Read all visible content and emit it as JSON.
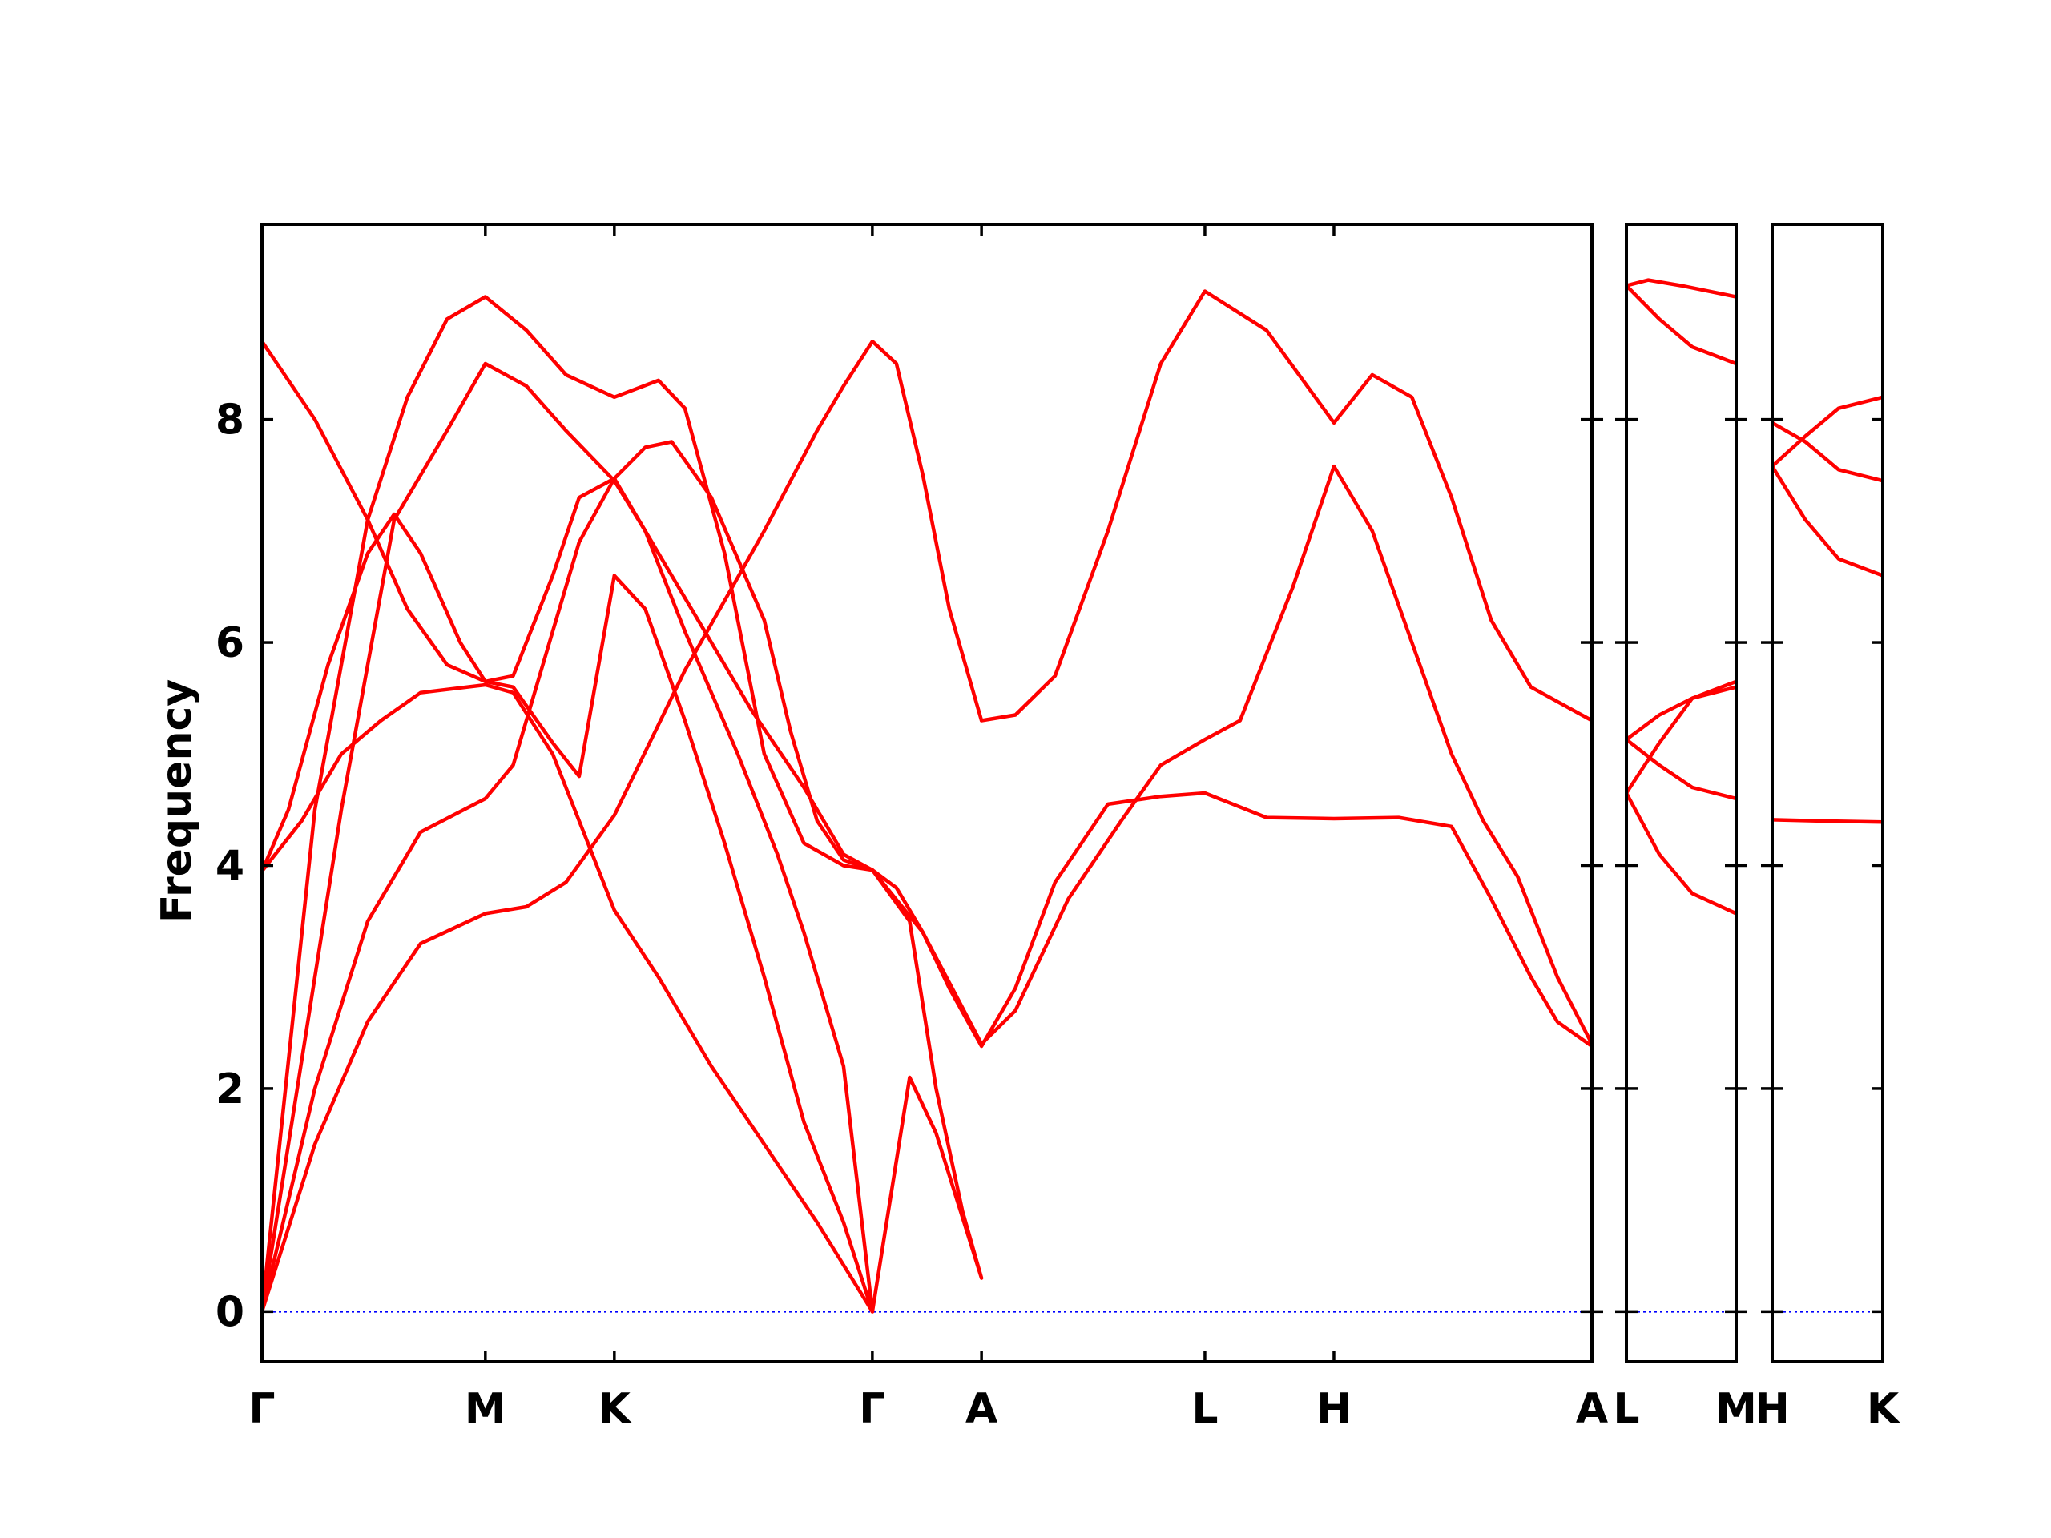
{
  "chart_data": {
    "type": "line",
    "title": "",
    "ylabel": "Frequency",
    "ylim": [
      -0.45,
      9.75
    ],
    "yticks": [
      0,
      2,
      4,
      6,
      8
    ],
    "line_color": "#ff0000",
    "zero_line_color": "#0000ff",
    "grid": false,
    "panels": [
      {
        "name": "main",
        "x_labels": [
          {
            "label": "Γ",
            "x": 0
          },
          {
            "label": "M",
            "x": 0.845
          },
          {
            "label": "K",
            "x": 1.333
          },
          {
            "label": "Γ",
            "x": 2.309
          },
          {
            "label": "A",
            "x": 2.722
          },
          {
            "label": "L",
            "x": 3.567
          },
          {
            "label": "H",
            "x": 4.055
          },
          {
            "label": "A",
            "x": 5.031
          }
        ],
        "series": [
          {
            "points": [
              [
                0,
                0
              ],
              [
                0.2,
                1.5
              ],
              [
                0.4,
                2.6
              ],
              [
                0.6,
                3.3
              ],
              [
                0.845,
                3.57
              ],
              [
                1.0,
                3.63
              ],
              [
                1.15,
                3.85
              ],
              [
                1.333,
                4.45
              ],
              [
                1.6,
                5.75
              ],
              [
                1.9,
                7.0
              ],
              [
                2.1,
                7.9
              ],
              [
                2.2,
                8.3
              ],
              [
                2.309,
                8.7
              ],
              [
                2.4,
                8.5
              ],
              [
                2.5,
                7.5
              ],
              [
                2.6,
                6.3
              ],
              [
                2.722,
                5.3
              ],
              [
                2.85,
                5.35
              ],
              [
                3.0,
                5.7
              ],
              [
                3.2,
                7.0
              ],
              [
                3.4,
                8.5
              ],
              [
                3.567,
                9.15
              ],
              [
                3.8,
                8.8
              ],
              [
                4.055,
                7.97
              ],
              [
                4.2,
                8.4
              ],
              [
                4.35,
                8.2
              ],
              [
                4.5,
                7.3
              ],
              [
                4.65,
                6.2
              ],
              [
                4.8,
                5.6
              ],
              [
                5.031,
                5.3
              ]
            ]
          },
          {
            "points": [
              [
                0,
                0
              ],
              [
                0.2,
                2.0
              ],
              [
                0.4,
                3.5
              ],
              [
                0.6,
                4.3
              ],
              [
                0.845,
                4.6
              ],
              [
                0.95,
                4.9
              ],
              [
                1.1,
                6.1
              ],
              [
                1.2,
                6.9
              ],
              [
                1.333,
                7.47
              ],
              [
                1.45,
                7.75
              ],
              [
                1.55,
                7.8
              ],
              [
                1.7,
                7.3
              ],
              [
                1.9,
                6.2
              ],
              [
                2.0,
                5.2
              ],
              [
                2.1,
                4.4
              ],
              [
                2.2,
                4.05
              ],
              [
                2.309,
                3.96
              ],
              [
                2.4,
                3.8
              ],
              [
                2.5,
                3.4
              ],
              [
                2.6,
                2.9
              ],
              [
                2.722,
                2.38
              ],
              [
                2.85,
                2.9
              ],
              [
                3.0,
                3.85
              ],
              [
                3.2,
                4.55
              ],
              [
                3.4,
                4.62
              ],
              [
                3.567,
                4.65
              ],
              [
                3.8,
                4.43
              ],
              [
                4.055,
                4.42
              ],
              [
                4.3,
                4.43
              ],
              [
                4.5,
                4.35
              ],
              [
                4.65,
                3.7
              ],
              [
                4.8,
                3.0
              ],
              [
                4.9,
                2.6
              ],
              [
                5.031,
                2.38
              ]
            ]
          },
          {
            "points": [
              [
                0,
                0
              ],
              [
                0.3,
                4.5
              ],
              [
                0.5,
                7.1
              ],
              [
                0.7,
                7.9
              ],
              [
                0.845,
                8.5
              ],
              [
                1.0,
                8.3
              ],
              [
                1.15,
                7.9
              ],
              [
                1.333,
                7.45
              ],
              [
                1.45,
                7.0
              ],
              [
                1.65,
                6.2
              ],
              [
                1.85,
                5.4
              ],
              [
                2.05,
                4.7
              ],
              [
                2.2,
                4.1
              ],
              [
                2.309,
                3.96
              ],
              [
                2.5,
                3.4
              ],
              [
                2.722,
                2.4
              ],
              [
                2.85,
                2.7
              ],
              [
                3.05,
                3.7
              ],
              [
                3.25,
                4.4
              ],
              [
                3.4,
                4.9
              ],
              [
                3.567,
                5.13
              ],
              [
                3.7,
                5.3
              ],
              [
                3.9,
                6.5
              ],
              [
                4.055,
                7.58
              ],
              [
                4.2,
                7.0
              ],
              [
                4.35,
                6.0
              ],
              [
                4.5,
                5.0
              ],
              [
                4.62,
                4.4
              ],
              [
                4.75,
                3.9
              ],
              [
                4.9,
                3.0
              ],
              [
                5.031,
                2.4
              ]
            ]
          },
          {
            "points": [
              [
                0,
                3.95
              ],
              [
                0.15,
                4.4
              ],
              [
                0.3,
                5.0
              ],
              [
                0.45,
                5.3
              ],
              [
                0.6,
                5.55
              ],
              [
                0.845,
                5.62
              ],
              [
                0.95,
                5.55
              ],
              [
                1.1,
                5.0
              ],
              [
                1.25,
                4.1
              ],
              [
                1.333,
                3.6
              ],
              [
                1.5,
                3.0
              ],
              [
                1.7,
                2.2
              ],
              [
                1.9,
                1.5
              ],
              [
                2.1,
                0.8
              ],
              [
                2.309,
                0
              ]
            ]
          },
          {
            "points": [
              [
                0,
                3.95
              ],
              [
                0.1,
                4.5
              ],
              [
                0.25,
                5.8
              ],
              [
                0.4,
                6.8
              ],
              [
                0.5,
                7.15
              ],
              [
                0.6,
                6.8
              ],
              [
                0.75,
                6.0
              ],
              [
                0.845,
                5.65
              ],
              [
                0.95,
                5.7
              ],
              [
                1.1,
                6.6
              ],
              [
                1.2,
                7.3
              ],
              [
                1.333,
                7.47
              ],
              [
                1.45,
                7.0
              ],
              [
                1.6,
                6.1
              ],
              [
                1.8,
                5.0
              ],
              [
                1.95,
                4.1
              ],
              [
                2.05,
                3.4
              ],
              [
                2.2,
                2.2
              ],
              [
                2.309,
                0
              ]
            ]
          },
          {
            "points": [
              [
                0,
                8.7
              ],
              [
                0.2,
                8.0
              ],
              [
                0.4,
                7.1
              ],
              [
                0.55,
                6.3
              ],
              [
                0.7,
                5.8
              ],
              [
                0.845,
                5.65
              ],
              [
                0.95,
                5.6
              ],
              [
                1.1,
                5.1
              ],
              [
                1.2,
                4.8
              ],
              [
                1.333,
                6.6
              ],
              [
                1.45,
                6.3
              ],
              [
                1.6,
                5.3
              ],
              [
                1.75,
                4.2
              ],
              [
                1.9,
                3.0
              ],
              [
                2.05,
                1.7
              ],
              [
                2.2,
                0.8
              ],
              [
                2.309,
                0
              ]
            ]
          },
          {
            "points": [
              [
                0,
                0
              ],
              [
                0.2,
                4.5
              ],
              [
                0.4,
                7.1
              ],
              [
                0.55,
                8.2
              ],
              [
                0.7,
                8.9
              ],
              [
                0.845,
                9.1
              ],
              [
                1.0,
                8.8
              ],
              [
                1.15,
                8.4
              ],
              [
                1.333,
                8.2
              ],
              [
                1.5,
                8.35
              ],
              [
                1.6,
                8.1
              ],
              [
                1.75,
                6.8
              ],
              [
                1.9,
                5.0
              ],
              [
                2.05,
                4.2
              ],
              [
                2.2,
                4.0
              ],
              [
                2.309,
                3.96
              ],
              [
                2.45,
                3.5
              ],
              [
                2.55,
                2.0
              ],
              [
                2.65,
                0.9
              ],
              [
                2.722,
                0.3
              ],
              [
                2.55,
                1.6
              ],
              [
                2.45,
                2.1
              ],
              [
                2.309,
                0
              ]
            ]
          }
        ]
      },
      {
        "name": "L-M",
        "x_labels": [
          {
            "label": "L",
            "x": 0
          },
          {
            "label": "M",
            "x": 0.5
          }
        ],
        "series": [
          {
            "points": [
              [
                0,
                9.2
              ],
              [
                0.1,
                9.25
              ],
              [
                0.25,
                9.2
              ],
              [
                0.5,
                9.1
              ]
            ]
          },
          {
            "points": [
              [
                0,
                9.2
              ],
              [
                0.15,
                8.9
              ],
              [
                0.3,
                8.65
              ],
              [
                0.5,
                8.5
              ]
            ]
          },
          {
            "points": [
              [
                0,
                5.13
              ],
              [
                0.15,
                5.35
              ],
              [
                0.3,
                5.5
              ],
              [
                0.5,
                5.6
              ]
            ]
          },
          {
            "points": [
              [
                0,
                5.13
              ],
              [
                0.15,
                4.9
              ],
              [
                0.3,
                4.7
              ],
              [
                0.5,
                4.6
              ]
            ]
          },
          {
            "points": [
              [
                0,
                4.65
              ],
              [
                0.15,
                5.1
              ],
              [
                0.3,
                5.5
              ],
              [
                0.5,
                5.65
              ]
            ]
          },
          {
            "points": [
              [
                0,
                4.65
              ],
              [
                0.15,
                4.1
              ],
              [
                0.3,
                3.75
              ],
              [
                0.5,
                3.57
              ]
            ]
          }
        ]
      },
      {
        "name": "H-K",
        "x_labels": [
          {
            "label": "H",
            "x": 0
          },
          {
            "label": "K",
            "x": 0.5
          }
        ],
        "series": [
          {
            "points": [
              [
                0,
                7.58
              ],
              [
                0.15,
                7.85
              ],
              [
                0.3,
                8.1
              ],
              [
                0.5,
                8.2
              ]
            ]
          },
          {
            "points": [
              [
                0,
                7.97
              ],
              [
                0.15,
                7.8
              ],
              [
                0.3,
                7.55
              ],
              [
                0.5,
                7.45
              ]
            ]
          },
          {
            "points": [
              [
                0,
                7.58
              ],
              [
                0.15,
                7.1
              ],
              [
                0.3,
                6.75
              ],
              [
                0.5,
                6.6
              ]
            ]
          },
          {
            "points": [
              [
                0,
                4.41
              ],
              [
                0.2,
                4.4
              ],
              [
                0.5,
                4.39
              ]
            ]
          }
        ]
      }
    ]
  }
}
